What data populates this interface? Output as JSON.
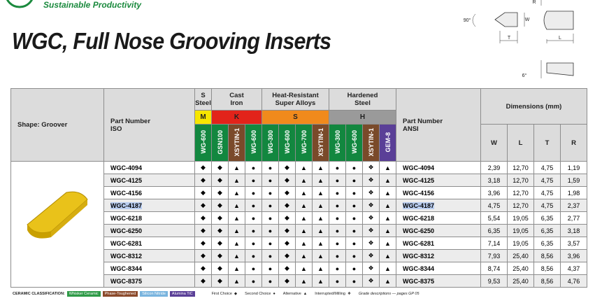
{
  "header": {
    "tagline": "Sustainable Productivity",
    "title": "WGC, Full Nose Grooving Inserts"
  },
  "diagram": {
    "angle_top": "90°",
    "r": "R",
    "w": "W",
    "t": "T",
    "l": "L",
    "angle_bottom": "6°"
  },
  "table": {
    "shape_header": "Shape: Groover",
    "iso_header": [
      "Part Number",
      "ISO"
    ],
    "ansi_header": [
      "Part Number",
      "ANSI"
    ],
    "dims_header": "Dimensions (mm)",
    "dims_columns": [
      "W",
      "L",
      "T",
      "R"
    ],
    "highlighted_row": 3,
    "groups": [
      {
        "lines": [
          "S",
          "Steel"
        ],
        "code": "M",
        "code_color": "#f7e600",
        "grades": [
          {
            "name": "WG-600",
            "color": "#12873f"
          }
        ]
      },
      {
        "lines": [
          "Cast",
          "Iron"
        ],
        "code": "K",
        "code_color": "#e2231a",
        "grades": [
          {
            "name": "GSN100",
            "color": "#12873f"
          },
          {
            "name": "XSYTIN-1",
            "color": "#7a4a2a"
          },
          {
            "name": "WG-600",
            "color": "#12873f"
          }
        ]
      },
      {
        "lines": [
          "Heat-Resistant",
          "Super Alloys"
        ],
        "code": "S",
        "code_color": "#f08a1c",
        "grades": [
          {
            "name": "WG-300",
            "color": "#12873f"
          },
          {
            "name": "WG-600",
            "color": "#12873f"
          },
          {
            "name": "WG-700",
            "color": "#12873f"
          },
          {
            "name": "XSYTIN-1",
            "color": "#7a4a2a"
          }
        ]
      },
      {
        "lines": [
          "Hardened",
          "Steel"
        ],
        "code": "H",
        "code_color": "#9a9a9a",
        "grades": [
          {
            "name": "WG-300",
            "color": "#12873f"
          },
          {
            "name": "WG-600",
            "color": "#12873f"
          },
          {
            "name": "XSYTIN-1",
            "color": "#7a4a2a"
          },
          {
            "name": "GEM-8",
            "color": "#5a3f97"
          }
        ]
      }
    ],
    "rows": [
      {
        "iso": "WGC-4094",
        "grades": [
          "◆",
          "◆",
          "▲",
          "●",
          "●",
          "◆",
          "▲",
          "▲",
          "●",
          "●",
          "❖",
          "▲"
        ],
        "ansi": "WGC-4094",
        "dims": [
          "2,39",
          "12,70",
          "4,75",
          "1,19"
        ]
      },
      {
        "iso": "WGC-4125",
        "grades": [
          "◆",
          "◆",
          "▲",
          "●",
          "●",
          "◆",
          "▲",
          "▲",
          "●",
          "●",
          "❖",
          "▲"
        ],
        "ansi": "WGC-4125",
        "dims": [
          "3,18",
          "12,70",
          "4,75",
          "1,59"
        ]
      },
      {
        "iso": "WGC-4156",
        "grades": [
          "◆",
          "◆",
          "▲",
          "●",
          "●",
          "◆",
          "▲",
          "▲",
          "●",
          "●",
          "❖",
          "▲"
        ],
        "ansi": "WGC-4156",
        "dims": [
          "3,96",
          "12,70",
          "4,75",
          "1,98"
        ]
      },
      {
        "iso": "WGC-4187",
        "grades": [
          "◆",
          "◆",
          "▲",
          "●",
          "●",
          "◆",
          "▲",
          "▲",
          "●",
          "●",
          "❖",
          "▲"
        ],
        "ansi": "WGC-4187",
        "dims": [
          "4,75",
          "12,70",
          "4,75",
          "2,37"
        ]
      },
      {
        "iso": "WGC-6218",
        "grades": [
          "◆",
          "◆",
          "▲",
          "●",
          "●",
          "◆",
          "▲",
          "▲",
          "●",
          "●",
          "❖",
          "▲"
        ],
        "ansi": "WGC-6218",
        "dims": [
          "5,54",
          "19,05",
          "6,35",
          "2,77"
        ]
      },
      {
        "iso": "WGC-6250",
        "grades": [
          "◆",
          "◆",
          "▲",
          "●",
          "●",
          "◆",
          "▲",
          "▲",
          "●",
          "●",
          "❖",
          "▲"
        ],
        "ansi": "WGC-6250",
        "dims": [
          "6,35",
          "19,05",
          "6,35",
          "3,18"
        ]
      },
      {
        "iso": "WGC-6281",
        "grades": [
          "◆",
          "◆",
          "▲",
          "●",
          "●",
          "◆",
          "▲",
          "▲",
          "●",
          "●",
          "❖",
          "▲"
        ],
        "ansi": "WGC-6281",
        "dims": [
          "7,14",
          "19,05",
          "6,35",
          "3,57"
        ]
      },
      {
        "iso": "WGC-8312",
        "grades": [
          "◆",
          "◆",
          "▲",
          "●",
          "●",
          "◆",
          "▲",
          "▲",
          "●",
          "●",
          "❖",
          "▲"
        ],
        "ansi": "WGC-8312",
        "dims": [
          "7,93",
          "25,40",
          "8,56",
          "3,96"
        ]
      },
      {
        "iso": "WGC-8344",
        "grades": [
          "◆",
          "◆",
          "▲",
          "●",
          "●",
          "◆",
          "▲",
          "▲",
          "●",
          "●",
          "❖",
          "▲"
        ],
        "ansi": "WGC-8344",
        "dims": [
          "8,74",
          "25,40",
          "8,56",
          "4,37"
        ]
      },
      {
        "iso": "WGC-8375",
        "grades": [
          "◆",
          "◆",
          "▲",
          "●",
          "●",
          "◆",
          "▲",
          "▲",
          "●",
          "●",
          "❖",
          "▲"
        ],
        "ansi": "WGC-8375",
        "dims": [
          "9,53",
          "25,40",
          "8,56",
          "4,76"
        ]
      }
    ]
  },
  "footer": {
    "classification_label": "CERAMIC CLASSIFICATION:",
    "classes": [
      {
        "name": "Whisker Ceramic",
        "color": "#2e9a47"
      },
      {
        "name": "Phase-Toughened",
        "color": "#8b4a2b"
      },
      {
        "name": "Silicon Nitride",
        "color": "#79b4de"
      },
      {
        "name": "Alumina TiC",
        "color": "#5a3f97"
      }
    ],
    "symbols": [
      {
        "name": "First Choice",
        "symbol": "◆"
      },
      {
        "name": "Second Choice",
        "symbol": "●"
      },
      {
        "name": "Alternative",
        "symbol": "▲"
      },
      {
        "name": "Interrupted/Milling",
        "symbol": "❖"
      }
    ],
    "note": "Grade descriptions — pages GP 05"
  }
}
